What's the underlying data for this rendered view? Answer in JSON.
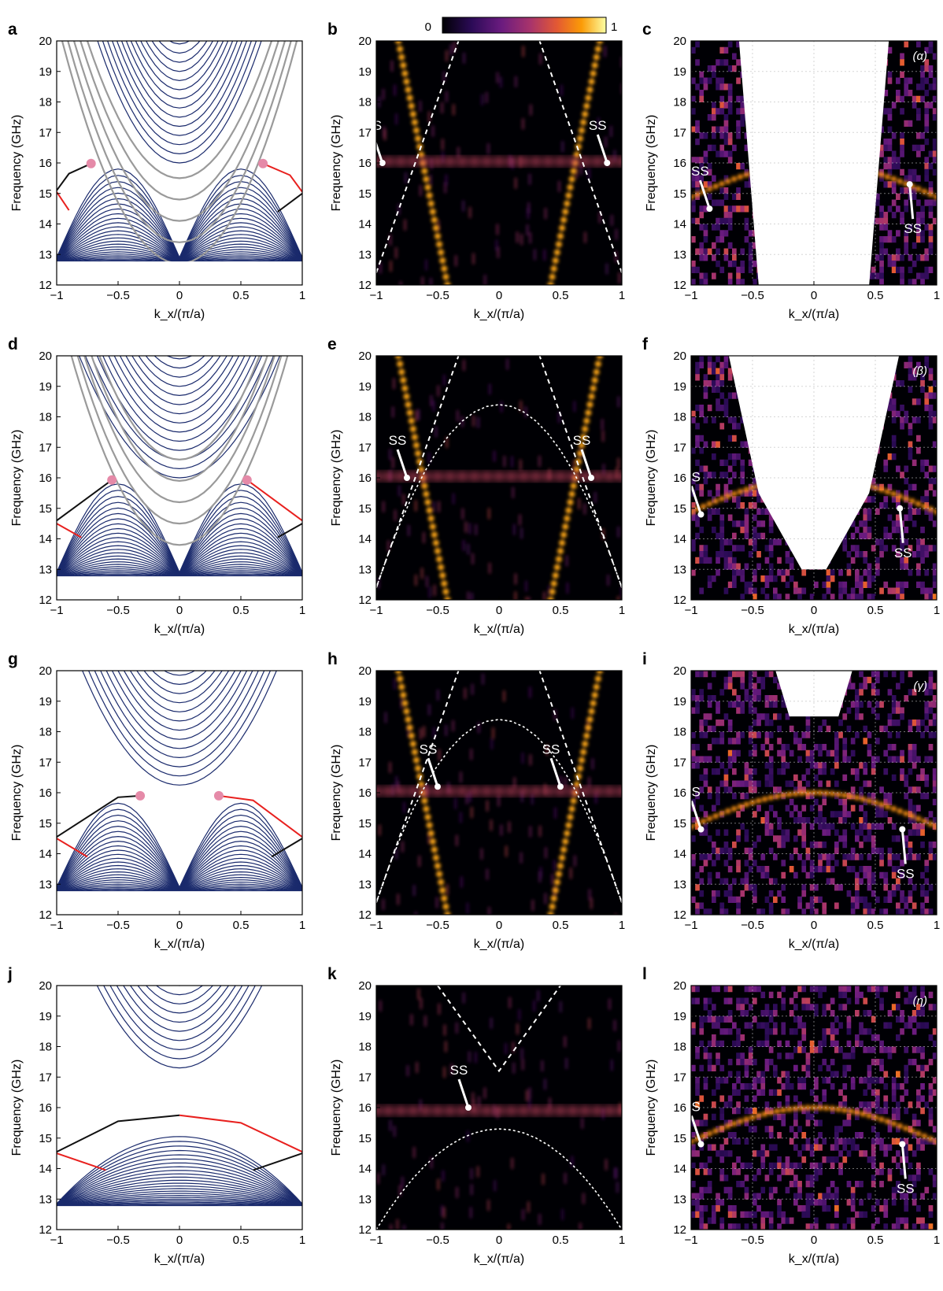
{
  "colorbar": {
    "min_label": "0",
    "max_label": "1",
    "colormap": [
      "#000004",
      "#2c0b57",
      "#6a1b7f",
      "#a9346b",
      "#e35933",
      "#fb9b06",
      "#fcffa4"
    ]
  },
  "common": {
    "xlabel": "k_x/(π/a)",
    "ylabel": "Frequency (GHz)",
    "xlim": [
      -1,
      1
    ],
    "ylim": [
      12,
      20
    ],
    "xticks": [
      "−1",
      "−0.5",
      "0",
      "0.5",
      "1"
    ],
    "yticks": [
      "12",
      "13",
      "14",
      "15",
      "16",
      "17",
      "18",
      "19",
      "20"
    ]
  },
  "colors": {
    "bulk": "#1a2a6c",
    "gray": "#9a9a9a",
    "red_edge": "#e8201e",
    "black_edge": "#111111",
    "weyl_point": "#e58aa8"
  },
  "ss_label": "SS",
  "chart_data": [
    {
      "panel": "a",
      "type": "line",
      "kind": "band",
      "weyl_points": [
        [
          -0.72,
          15.98
        ],
        [
          0.68,
          15.98
        ]
      ],
      "surface_states": {
        "black": [
          [
            -1,
            15.1
          ],
          [
            -0.9,
            15.65
          ],
          [
            -0.72,
            15.98
          ]
        ],
        "red": [
          [
            -1,
            15.05
          ],
          [
            -0.9,
            14.45
          ]
        ],
        "red_right": [
          [
            0.68,
            15.98
          ],
          [
            0.9,
            15.6
          ],
          [
            1,
            15.05
          ]
        ],
        "black_right": [
          [
            0.8,
            14.4
          ],
          [
            1,
            15.0
          ]
        ]
      }
    },
    {
      "panel": "b",
      "type": "heatmap",
      "kind": "sim",
      "ss_arrows": [
        [
          -0.95,
          16.0
        ],
        [
          0.88,
          16.0
        ]
      ]
    },
    {
      "panel": "c",
      "type": "heatmap",
      "kind": "exp",
      "case_label": "(α)",
      "ss_arrows": [
        [
          -0.85,
          14.5
        ],
        [
          0.78,
          15.3
        ]
      ]
    },
    {
      "panel": "d",
      "type": "line",
      "kind": "band",
      "weyl_points": [
        [
          -0.55,
          15.93
        ],
        [
          0.55,
          15.93
        ]
      ],
      "surface_states": {
        "black": [
          [
            -1,
            14.6
          ],
          [
            -0.55,
            15.93
          ]
        ],
        "red": [
          [
            -1,
            14.5
          ],
          [
            -0.8,
            14.05
          ]
        ],
        "red_right": [
          [
            0.55,
            15.93
          ],
          [
            1,
            14.6
          ]
        ],
        "black_right": [
          [
            0.8,
            14.05
          ],
          [
            1,
            14.5
          ]
        ]
      }
    },
    {
      "panel": "e",
      "type": "heatmap",
      "kind": "sim",
      "ss_arrows": [
        [
          -0.75,
          16.0
        ],
        [
          0.75,
          16.0
        ]
      ]
    },
    {
      "panel": "f",
      "type": "heatmap",
      "kind": "exp",
      "case_label": "(β)",
      "ss_arrows": [
        [
          -0.92,
          14.8
        ],
        [
          0.7,
          15.0
        ]
      ]
    },
    {
      "panel": "g",
      "type": "line",
      "kind": "band",
      "weyl_points": [
        [
          -0.32,
          15.9
        ],
        [
          0.32,
          15.9
        ]
      ],
      "surface_states": {
        "black": [
          [
            -1,
            14.55
          ],
          [
            -0.5,
            15.85
          ],
          [
            -0.32,
            15.9
          ]
        ],
        "red": [
          [
            -1,
            14.5
          ],
          [
            -0.75,
            13.9
          ]
        ],
        "red_right": [
          [
            0.32,
            15.9
          ],
          [
            0.6,
            15.75
          ],
          [
            1,
            14.55
          ]
        ],
        "black_right": [
          [
            0.75,
            13.9
          ],
          [
            1,
            14.5
          ]
        ]
      }
    },
    {
      "panel": "h",
      "type": "heatmap",
      "kind": "sim",
      "ss_arrows": [
        [
          -0.5,
          16.2
        ],
        [
          0.5,
          16.2
        ]
      ]
    },
    {
      "panel": "i",
      "type": "heatmap",
      "kind": "exp",
      "case_label": "(γ)",
      "ss_arrows": [
        [
          -0.92,
          14.8
        ],
        [
          0.72,
          14.8
        ]
      ]
    },
    {
      "panel": "j",
      "type": "line",
      "kind": "band",
      "weyl_points": [],
      "surface_states": {
        "black": [
          [
            -1,
            14.55
          ],
          [
            -0.5,
            15.55
          ],
          [
            0,
            15.75
          ]
        ],
        "red": [
          [
            -1,
            14.5
          ],
          [
            -0.6,
            13.95
          ]
        ],
        "red_right": [
          [
            0,
            15.75
          ],
          [
            0.5,
            15.5
          ],
          [
            1,
            14.55
          ]
        ],
        "black_right": [
          [
            0.6,
            13.95
          ],
          [
            1,
            14.5
          ]
        ]
      }
    },
    {
      "panel": "k",
      "type": "heatmap",
      "kind": "sim",
      "ss_arrows": [
        [
          -0.25,
          16.0
        ]
      ]
    },
    {
      "panel": "l",
      "type": "heatmap",
      "kind": "exp",
      "case_label": "(η)",
      "ss_arrows": [
        [
          -0.92,
          14.8
        ],
        [
          0.72,
          14.8
        ]
      ]
    }
  ]
}
